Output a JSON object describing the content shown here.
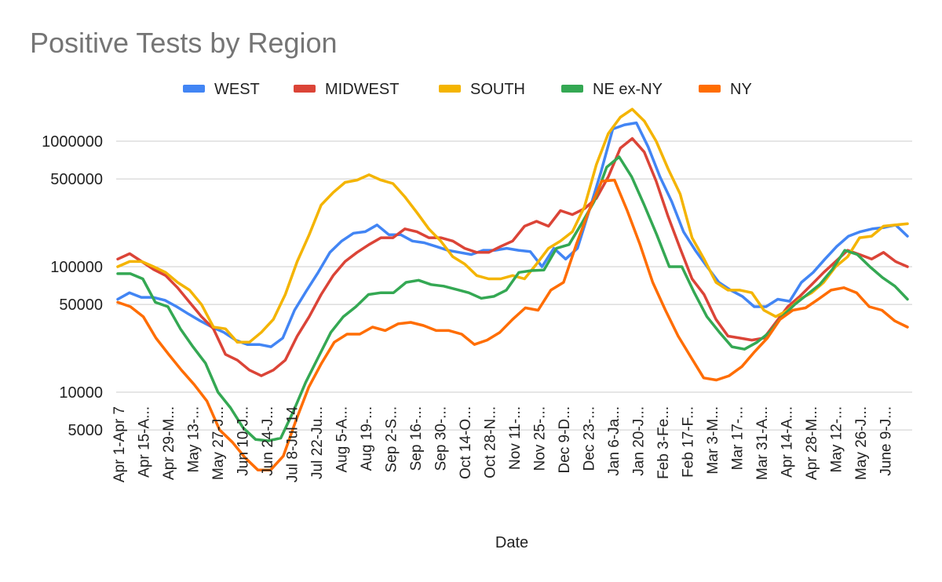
{
  "chart_data": {
    "type": "line",
    "title": "Positive Tests by Region",
    "xlabel": "Date",
    "ylabel": "",
    "y_scale": "log",
    "y_ticks": [
      5000,
      10000,
      50000,
      100000,
      500000,
      1000000
    ],
    "ylim": [
      2500,
      1800000
    ],
    "legend_position": "top",
    "grid": "horizontal",
    "x_tick_labels": [
      "Apr 1-Apr 7",
      "Apr 15-A...",
      "Apr 29-M...",
      "May 13-...",
      "May 27-J...",
      "Jun 10-J...",
      "Jun 24-J...",
      "Jul 8-Jul 14",
      "Jul 22-Ju...",
      "Aug 5-A...",
      "Aug 19-...",
      "Sep 2-S...",
      "Sep 16-...",
      "Sep 30-...",
      "Oct 14-O...",
      "Oct 28-N...",
      "Nov 11-...",
      "Nov 25-...",
      "Dec 9-D...",
      "Dec 23-...",
      "Jan 6-Ja...",
      "Jan 20-J...",
      "Feb 3-Fe...",
      "Feb 17-F...",
      "Mar 3-M...",
      "Mar 17-...",
      "Mar 31-A...",
      "Apr 14-A...",
      "Apr 28-M...",
      "May 12-...",
      "May 26-J...",
      "June 9-J..."
    ],
    "x_label_every": 2,
    "series": [
      {
        "name": "WEST",
        "color": "#4285f4",
        "values": [
          55000,
          62000,
          57000,
          57000,
          54000,
          48000,
          42000,
          37000,
          33000,
          30000,
          26000,
          24000,
          24000,
          23000,
          27000,
          45000,
          64000,
          90000,
          130000,
          160000,
          185000,
          190000,
          215000,
          180000,
          180000,
          160000,
          155000,
          145000,
          135000,
          130000,
          125000,
          135000,
          135000,
          140000,
          135000,
          132000,
          100000,
          140000,
          115000,
          140000,
          280000,
          570000,
          1250000,
          1350000,
          1400000,
          900000,
          520000,
          330000,
          190000,
          135000,
          100000,
          75000,
          65000,
          58000,
          48000,
          48000,
          55000,
          53000,
          75000,
          90000,
          115000,
          145000,
          175000,
          190000,
          200000,
          205000,
          215000,
          175000
        ]
      },
      {
        "name": "MIDWEST",
        "color": "#db4437",
        "values": [
          115000,
          127000,
          110000,
          95000,
          85000,
          68000,
          52000,
          40000,
          32000,
          20000,
          18000,
          15000,
          13500,
          15000,
          18000,
          28000,
          40000,
          60000,
          85000,
          110000,
          130000,
          150000,
          170000,
          170000,
          200000,
          190000,
          170000,
          170000,
          160000,
          140000,
          130000,
          130000,
          145000,
          160000,
          210000,
          230000,
          210000,
          280000,
          260000,
          290000,
          350000,
          520000,
          880000,
          1050000,
          820000,
          480000,
          250000,
          140000,
          80000,
          60000,
          38000,
          28000,
          27000,
          26000,
          27000,
          36000,
          48000,
          58000,
          72000,
          90000,
          110000,
          135000,
          125000,
          115000,
          130000,
          110000,
          100000
        ]
      },
      {
        "name": "SOUTH",
        "color": "#f4b400",
        "values": [
          100000,
          110000,
          110000,
          100000,
          90000,
          75000,
          65000,
          50000,
          33000,
          32000,
          25000,
          25000,
          30000,
          38000,
          60000,
          110000,
          180000,
          310000,
          390000,
          470000,
          490000,
          540000,
          490000,
          460000,
          360000,
          270000,
          200000,
          160000,
          120000,
          105000,
          85000,
          80000,
          80000,
          85000,
          80000,
          105000,
          140000,
          160000,
          190000,
          300000,
          650000,
          1150000,
          1550000,
          1800000,
          1450000,
          1000000,
          600000,
          380000,
          170000,
          115000,
          75000,
          65000,
          65000,
          62000,
          45000,
          40000,
          45000,
          55000,
          62000,
          75000,
          100000,
          120000,
          170000,
          175000,
          210000,
          215000,
          220000
        ]
      },
      {
        "name": "NE ex-NY",
        "color": "#34a853",
        "values": [
          88000,
          88000,
          80000,
          52000,
          48000,
          32000,
          23000,
          17000,
          10000,
          7500,
          5200,
          4200,
          4100,
          4300,
          7000,
          12000,
          19000,
          30000,
          40000,
          48000,
          60000,
          62000,
          62000,
          75000,
          78000,
          72000,
          70000,
          66000,
          62000,
          56000,
          58000,
          65000,
          90000,
          93000,
          94000,
          140000,
          150000,
          220000,
          330000,
          620000,
          750000,
          520000,
          310000,
          180000,
          100000,
          100000,
          62000,
          40000,
          30000,
          23000,
          22000,
          25000,
          30000,
          40000,
          50000,
          60000,
          72000,
          95000,
          135000,
          125000,
          100000,
          82000,
          70000,
          55000
        ]
      },
      {
        "name": "NY",
        "color": "#ff6d01",
        "values": [
          52000,
          48000,
          40000,
          27000,
          20000,
          15000,
          11500,
          8500,
          5000,
          4000,
          3000,
          2400,
          2400,
          3100,
          6000,
          11000,
          17000,
          25000,
          29000,
          29000,
          33000,
          31000,
          35000,
          36000,
          34000,
          31000,
          31000,
          29000,
          24000,
          26000,
          30000,
          38000,
          47000,
          45000,
          65000,
          75000,
          150000,
          280000,
          480000,
          490000,
          280000,
          150000,
          75000,
          45000,
          28000,
          19000,
          13000,
          12500,
          13500,
          16000,
          21000,
          27000,
          38000,
          45000,
          47000,
          55000,
          65000,
          68000,
          62000,
          48000,
          45000,
          37000,
          33000
        ]
      }
    ]
  }
}
